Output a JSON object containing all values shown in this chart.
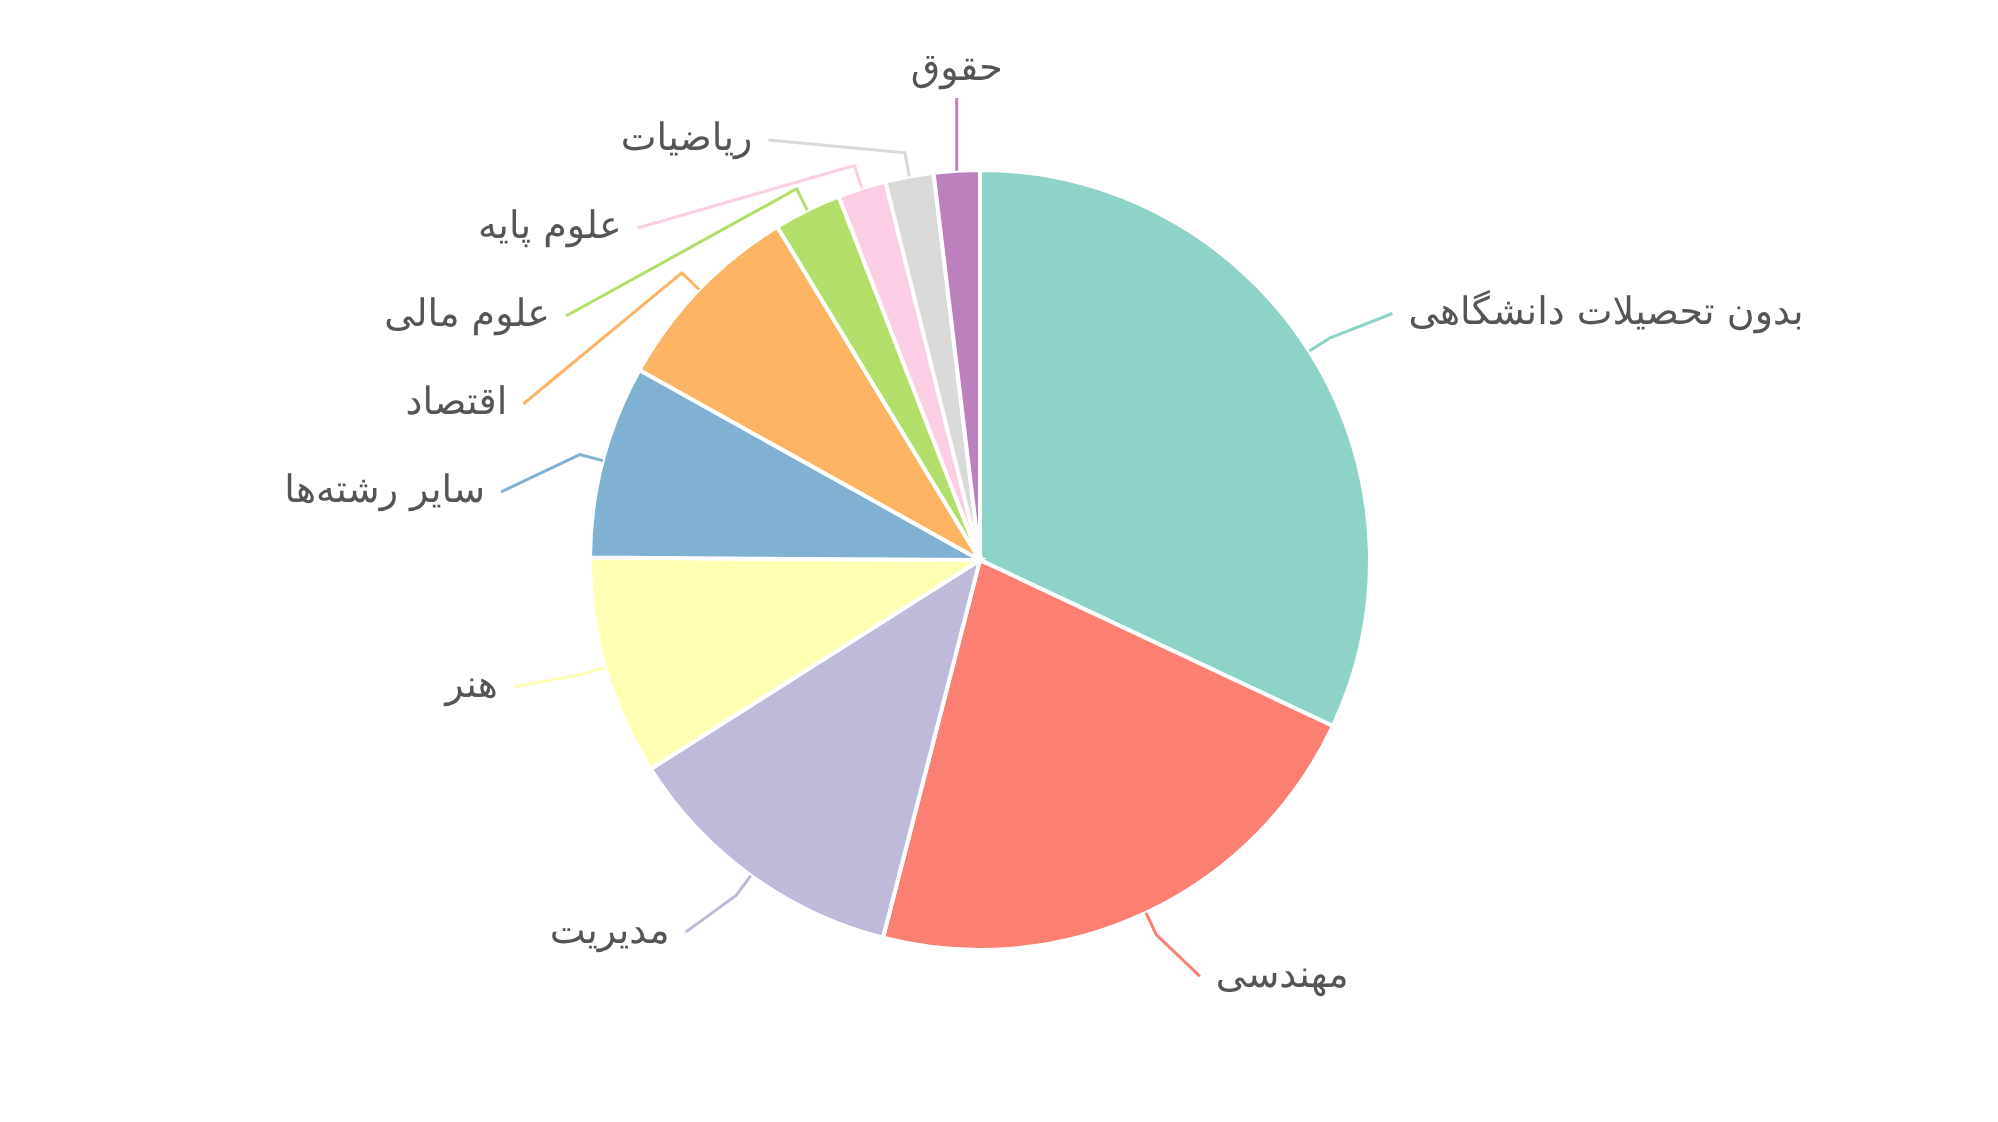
{
  "chart_data": {
    "type": "pie",
    "categories": [
      "بدون تحصیلات دانشگاهی",
      "مهندسی",
      "مدیریت",
      "هنر",
      "سایر رشته‌ها",
      "اقتصاد",
      "علوم مالی",
      "علوم پایه",
      "ریاضیات",
      "حقوق"
    ],
    "values": [
      32,
      22,
      12,
      9.1,
      8,
      8.2,
      2.8,
      2,
      2,
      1.9
    ],
    "colors": [
      "#8dd3c7",
      "#fb8072",
      "#bebada",
      "#ffffb3",
      "#80b1d3",
      "#fdb462",
      "#b3de69",
      "#fccde5",
      "#d9d9d9",
      "#bc80bd"
    ]
  }
}
